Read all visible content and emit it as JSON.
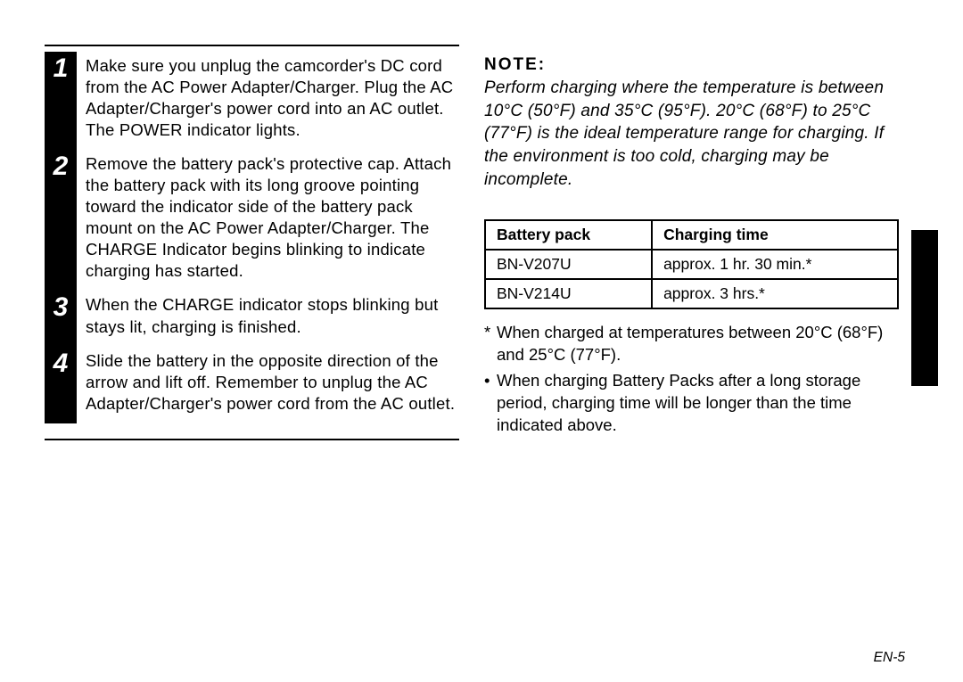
{
  "steps": [
    {
      "num": "1",
      "text": "Make sure you unplug the camcorder's DC cord from the AC Power Adapter/Charger. Plug the AC Adapter/Charger's power cord into an AC outlet. The POWER indicator lights."
    },
    {
      "num": "2",
      "text": "Remove the battery pack's protective cap. Attach the battery pack with its long groove pointing toward the indicator side of the battery pack mount on the AC Power Adapter/Charger. The CHARGE Indicator begins blinking to indicate charging has started."
    },
    {
      "num": "3",
      "text": "When the CHARGE indicator stops blinking but stays lit, charging is finished."
    },
    {
      "num": "4",
      "text": "Slide the battery in the opposite direction of the arrow and lift off. Remember to unplug the AC Adapter/Charger's power cord from the AC outlet."
    }
  ],
  "note": {
    "title": "NOTE:",
    "body": "Perform charging where the temperature is between 10°C (50°F) and 35°C (95°F). 20°C (68°F) to 25°C (77°F) is the ideal temperature range for charging. If the environment is too cold, charging may be incomplete."
  },
  "table": {
    "headers": [
      "Battery pack",
      "Charging time"
    ],
    "rows": [
      [
        "BN-V207U",
        "approx. 1 hr. 30 min.*"
      ],
      [
        "BN-V214U",
        "approx. 3 hrs.*"
      ]
    ]
  },
  "bullets": [
    {
      "mark": "*",
      "text": "When charged at temperatures between 20°C (68°F) and 25°C (77°F)."
    },
    {
      "mark": "•",
      "text": "When charging Battery Packs after a long storage period, charging time will be longer than the time indicated above."
    }
  ],
  "page_number": "EN-5"
}
